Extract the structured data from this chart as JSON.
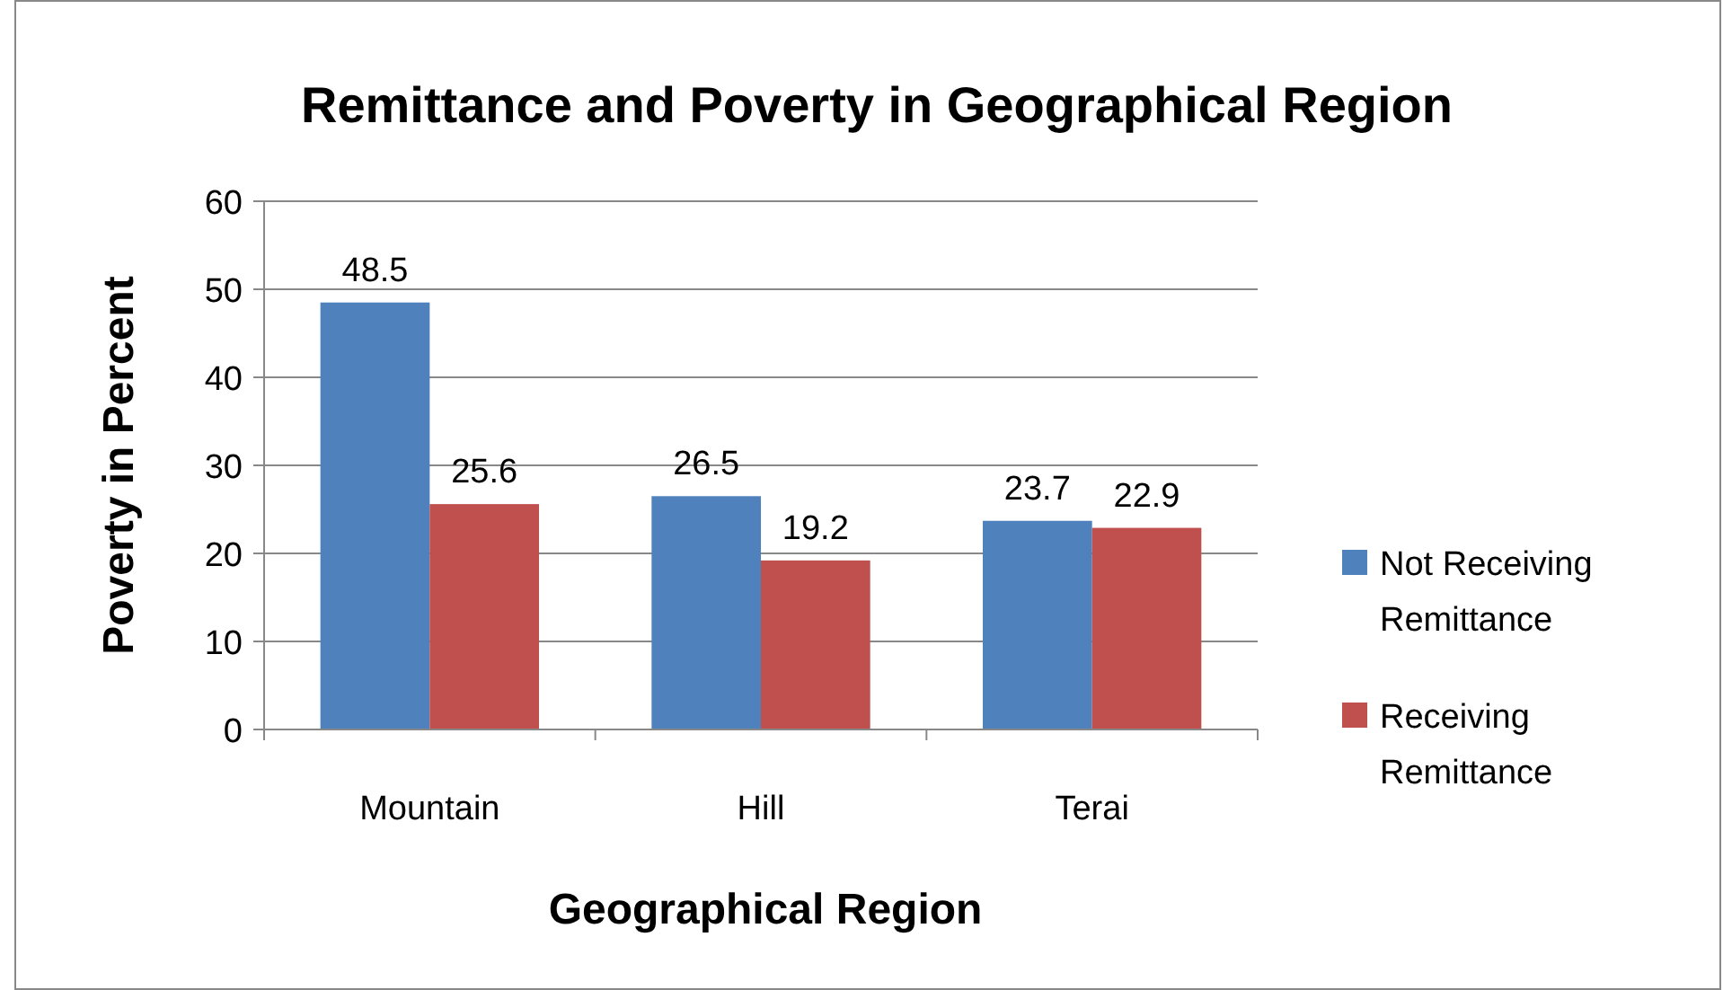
{
  "chart_data": {
    "type": "bar",
    "title": "Remittance and Poverty in Geographical Region",
    "xlabel": "Geographical Region",
    "ylabel": "Poverty in Percent",
    "categories": [
      "Mountain",
      "Hill",
      "Terai"
    ],
    "series": [
      {
        "name": "Not Receiving Remittance",
        "color": "#4f81bd",
        "values": [
          48.5,
          26.5,
          23.7
        ]
      },
      {
        "name": "Receiving Remittance",
        "color": "#c0504d",
        "values": [
          25.6,
          19.2,
          22.9
        ]
      }
    ],
    "ylim": [
      0,
      60
    ],
    "yticks": [
      0,
      10,
      20,
      30,
      40,
      50,
      60
    ],
    "grid": "y",
    "legend": "right",
    "data_labels": true
  }
}
